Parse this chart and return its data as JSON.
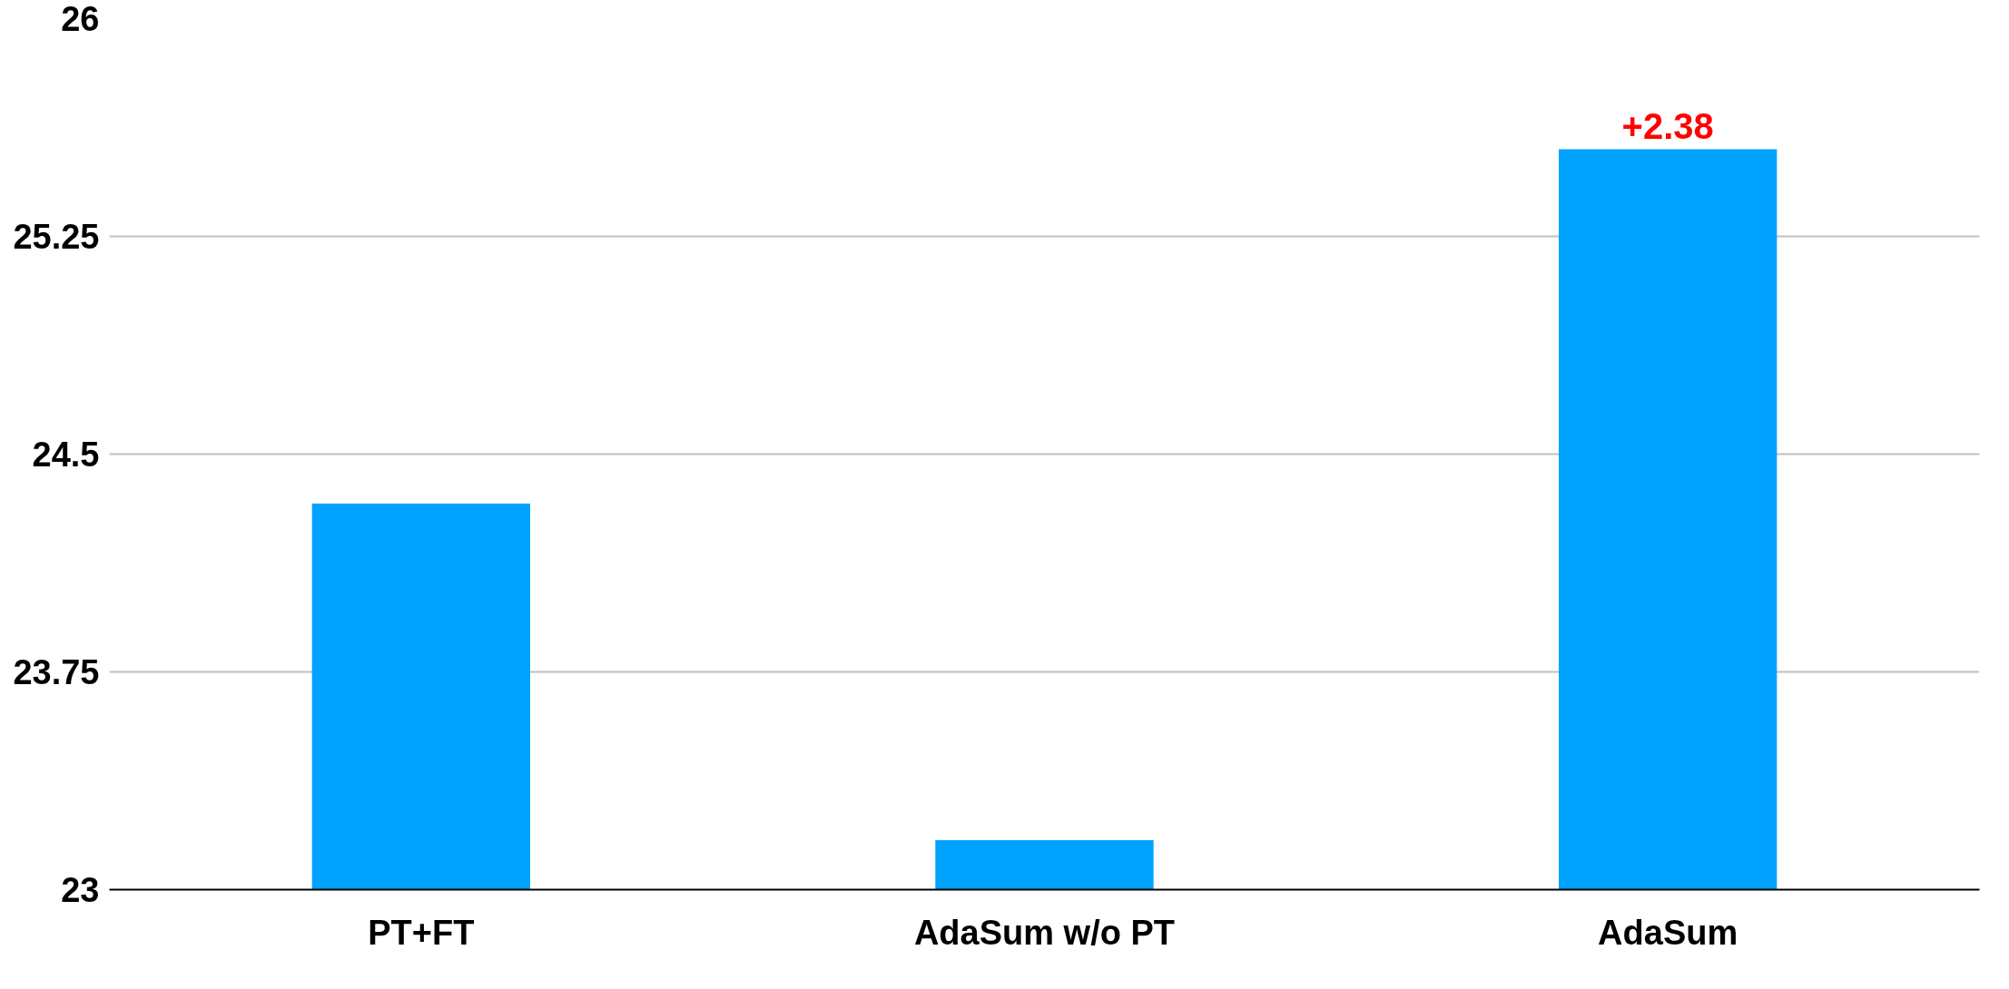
{
  "chart_data": {
    "type": "bar",
    "categories": [
      "PT+FT",
      "AdaSum w/o PT",
      "AdaSum"
    ],
    "values": [
      24.33,
      23.17,
      25.55
    ],
    "color": "#00a2ff",
    "ylim": [
      23,
      26
    ],
    "yticks": [
      23,
      23.75,
      24.5,
      25.25,
      26
    ],
    "grid": "y",
    "annotations": [
      {
        "text": "+2.38",
        "x": "AdaSum",
        "y": 25.55
      }
    ]
  }
}
